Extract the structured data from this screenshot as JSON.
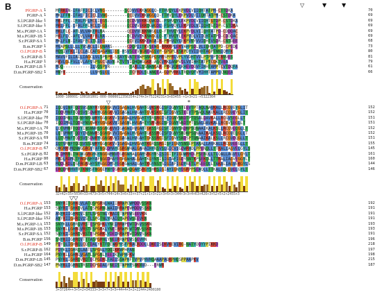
{
  "panel": {
    "label": "B"
  },
  "colors": {
    "hydrophobic": "#5b8fd6",
    "positive": "#d9463b",
    "negative": "#b04fc0",
    "polar": "#3bb55b",
    "cysteine": "#e79a8b",
    "glycine": "#e88a2b",
    "proline": "#d9d64a",
    "aromatic": "#3eb1b8",
    "conservation_high": "#f3dc3b",
    "conservation_mid": "#9a6b2a",
    "conservation_low": "#7a3d12"
  },
  "conservation_label": "Conservation",
  "blocks": [
    {
      "rows": [
        {
          "name": "PfGRP-A",
          "red": true,
          "start": "1",
          "end": "70",
          "seq": "MFRKEN-IFAFFICICLVNG--------SCDVVEKKWGGLQ-FTHVQYLEKPVDLVIIQHTATPM-CTTDKA"
        },
        {
          "name": "PGRP-A",
          "red": false,
          "start": "1",
          "end": "69",
          "seq": "MKLFFN-IFALFICICLIVNG--------QCDVVEKKWGGLQ-FTHVQYLEKPVDLVIIQHTATPM-CSTDKA"
        },
        {
          "name": "S.l.PGRP-like",
          "red": false,
          "start": "1",
          "end": "69",
          "seq": "MKLFFL-IFALFFLMCLIEGS--------QCDVVEKKQGWGDL-FSHVQYLEKPVDLVIIQHTGTDP-CSTDKA"
        },
        {
          "name": "S.f.PGRP-like",
          "red": false,
          "start": "1",
          "end": "69",
          "seq": "MKLFFL-IFALFFLMCLIEGS--------QCDVVEKKQGWGDL-FSHVQYLEKPVDLVIIQHTGTDP-CSTDKA"
        },
        {
          "name": "M.s.PGRP-1A",
          "red": false,
          "start": "1",
          "end": "69",
          "seq": "MKLFLC-AFLVLVAKFRLNA---------QCDVVEKKNWGGLQ-FTHVQYLEKPVDLVIIQHTATPD-CDDDAC"
        },
        {
          "name": "M.s.PGRP-1B",
          "red": false,
          "start": "1",
          "end": "69",
          "seq": "MKLFLC-AFLVLVAKFRLNA---------QCDVVEKKNWGGLQ-FTHVQYLEKPVDLVIIQHTATPD-CDDDAC"
        },
        {
          "name": "S.r.PGRP-SA",
          "red": false,
          "start": "1",
          "end": "68",
          "seq": "MKLFLN-IFALFFCITLIEG---------QCEVIKKKEWGAIR-PRHVQYLEKPVNYVVIQHTVSDR-CNTDEE"
        },
        {
          "name": "B.m.PGRP",
          "red": false,
          "start": "1",
          "end": "73",
          "seq": "MVAPSLLLLLTVSACLIEGNAAS------CDQPIITKVSEWG-RRKKPLEKVAHPSDLVLIQHTATPD-CPEDE"
        },
        {
          "name": "O.f.PGRP-B",
          "red": true,
          "start": "1",
          "end": "80",
          "seq": "MQSIVFKLILCLALCAFGAGANLIGS-HSVSEEVNGNEWGSVP-GPGPLKSKPDYVIIHHTAGPTNNIQMFK"
        },
        {
          "name": "S.r.PGRP-B",
          "red": false,
          "start": "1",
          "end": "81",
          "seq": "MAVVFILIAILIAGCLVLSPNPR-SSAYSVATEVWPSNGPGSMRSPPRLVPLYVDHTVVLPTPVPTCRNVES"
        },
        {
          "name": "H.a.PGRP",
          "red": false,
          "start": "1",
          "end": "79",
          "seq": "MKVLGLFVLLVLAFVSPSGCSAVN-KTVTVIQHQWGGKR-ASCVRKLANPVDLVVIHHTATPTCGKTVEA"
        },
        {
          "name": "D.m.PGRP-LB",
          "red": false,
          "start": "1",
          "end": "61",
          "seq": "MQQ-----------ILVQSPVR--------TARLLSSNWNGAR-PRKVQRLKHEVDQVFIHHTAMPTCVTDQFA"
        },
        {
          "name": "D.m.PGRP-SB2",
          "red": false,
          "start": "1",
          "end": "66",
          "seq": "MNYK----------LLVMSLGL--------TCFRDLSLWNQEA-GDPVRKLTRQVQFVMIHHTAMPLCNQEA"
        }
      ],
      "scores": "1000-100001-100101001-000-0000012356354+274+3+75224231+3+83455-+1+3+21-+5322364"
    },
    {
      "rows": [
        {
          "name": "O.f.PGRP-A",
          "red": true,
          "start": "71",
          "end": "152",
          "seq": "IQDVINFTQDSVSSNYRYGGNGKVVIGAGWLHVGAHTGVKSKGISFIGNYSTEEVTPTAQLNAVKALLRCGVEYGLIT"
        },
        {
          "name": "H.a.PGRP",
          "red": false,
          "start": "70",
          "end": "152",
          "seq": "IQDVMNFTQDSVSSDWRYGGNGKVVIGAGWLHVGAHTGVKSKGISFIGNYSTEEVTPSAQLNAVKALLRCGVEYGLIT"
        },
        {
          "name": "S.l.PGRP-like",
          "red": false,
          "start": "70",
          "end": "151",
          "seq": "IQDIMNLTQDNYNSGWRYGGNGKVVIGAGWLHVGAHTYSRSRGISFIGNYNNDTPTQSALDAVKALLRCGVSEGLLT"
        },
        {
          "name": "S.f.PGRP-like",
          "red": false,
          "start": "70",
          "end": "151",
          "seq": "IQDIMNLTQDNYNSGWRYGGNGKVVIGAGWLHVGAHTYSRSRGISFIGNYNNDTPTQSALDAVKALLRCGVSEGLLT"
        },
        {
          "name": "M.s.PGRP-1A",
          "red": false,
          "start": "70",
          "end": "152",
          "seq": "LQTVMNFTQDYINSNWRSSGNGKVVIGAGWLHVGAHTGKSSRGISFIGNYSNDNPSQNAAIKALKSLLRCGVEQGLLT"
        },
        {
          "name": "M.s.PGRP-1B",
          "red": false,
          "start": "70",
          "end": "152",
          "seq": "LQTVMNFTQDYINSNWRSSGNGKVVIGAGWLHVGAHTGKSSRGISFIGNYSNDNPSQNAAIKALKSLLRCGVEQGLLT"
        },
        {
          "name": "S.r.PGRP-SA",
          "red": false,
          "start": "69",
          "end": "151",
          "seq": "LQTVMNFTQDSVSSDWRYGGNGKVVIGAGWLHVGAHTGKSSRGISFIGNYSNDSPTQNAAIKALKSLLRCGVEQGLLT"
        },
        {
          "name": "B.m.PGRP",
          "red": false,
          "start": "74",
          "end": "155",
          "seq": "IQTVMNFTQDSVSSDWRYGGNGKVVIGAGWLHVGAHTKGRSSRGISFIGNYSNSEPTANALLAVKALLRCGVEEGLLT"
        },
        {
          "name": "O.f.PGRP-B",
          "red": true,
          "start": "67",
          "end": "145",
          "seq": "QMGMRVMQNWGGRGVYAFNGGDMAYEGRGWHALGAHAIHFNSVSLGICVIGDWRHDLPPENQLLTTKALIAGVELGYLS"
        },
        {
          "name": "S.r.PGRP-B",
          "red": false,
          "start": "82",
          "end": "161",
          "seq": "RCDMRNLTNGWGGRGHGYNGGNMNVEGRGWHALGAHSRGYNSISIGITFIGDWRHDLPSENQLLTLQALLAGVELGYLT"
        },
        {
          "name": "H.a.PGRP",
          "red": false,
          "start": "80",
          "end": "160",
          "seq": "MKDLRDMQTFRGRNHYAFNGGDMAYEGRGWHALGAHTKGYNSISIGIAFIGDYNNTKPSEKQLLTTKALIAGVEGGYLT"
        },
        {
          "name": "D.m.PGRP-LB",
          "red": false,
          "start": "63",
          "end": "144",
          "seq": "MQDLRDLQSFRGRNHYSFNGGDMSYEGRGWHALGAHTKGYNSTSIGIAFIGDFNETLPSEEQLLTAKALIAGVEKGYLS"
        },
        {
          "name": "D.m.PGRP-SB2",
          "red": false,
          "start": "67",
          "end": "146",
          "seq": "ERQDMRHVFRTKNHSFNGGEMNYEGRGWQAQGAHSRGYSHRSIGIAYIGNYDGRPPSEWQLLTTKALIQLGVELGYLT"
        }
      ],
      "scores": "32+42+35+5034+33+473+3+5+744+14+3+6+33++37+21+1+3+21+3+6+3+344+3+3+4+63+426+3+52+5+2+2455+3"
    },
    {
      "rows": [
        {
          "name": "O.f.PGRP-A",
          "red": true,
          "start": "153",
          "end": "192",
          "seq": "SNYRITGHKQVLATQSPGRNLWAIIRRWPEWMDDVSSKN"
        },
        {
          "name": "H.a.PGRP",
          "red": false,
          "start": "153",
          "end": "191",
          "seq": "SNYRITGHKQVLATQSPGRNLWAIIRRWPEWMDDVSSKN"
        },
        {
          "name": "S.l.PGRP-like",
          "red": false,
          "start": "152",
          "end": "191",
          "seq": "ANYKIIGHRQVISTLSPGTNLYRAIQTWPEWSEEVKN"
        },
        {
          "name": "S.f.PGRP-like",
          "red": false,
          "start": "152",
          "end": "191",
          "seq": "ANYKIIGHRQVISTLSPGTNLYRAIQTWPEWSEEVKN"
        },
        {
          "name": "M.s.PGRP-1A",
          "red": false,
          "start": "153",
          "end": "193",
          "seq": "SNYKLLGHRQVRSTESPGRKLYNEIRRWPEWTDNVSSKN"
        },
        {
          "name": "M.s.PGRP-1B",
          "red": false,
          "start": "153",
          "end": "193",
          "seq": "SNYKLLGHRQVRSTESPGRKLYNEIRRWPEWTDNVSSKN"
        },
        {
          "name": "S.r.PGRP-SA",
          "red": false,
          "start": "152",
          "end": "191",
          "seq": "SNYKIIGHRQVRSTESPGRKLYDEIRRWPEWTDNVSSKN"
        },
        {
          "name": "B.m.PGRP",
          "red": false,
          "start": "156",
          "end": "196",
          "seq": "SNYKIIGHRQVTTTASPGRNLYNEIRRWPEWSSEVHN"
        },
        {
          "name": "O.f.PGRP-B",
          "red": true,
          "start": "149",
          "end": "218",
          "seq": "PDYQLIGHRQLCQTDALYKTFQEWKPHSFPRACRDDLLDKEISEKVKEVIRG-NATYDDYYPIKKD"
        },
        {
          "name": "S.r.PGRP-B",
          "red": false,
          "start": "162",
          "end": "197",
          "seq": "PDYKLIGHRQLAATLSPGNLYQQIKKWPHFAN"
        },
        {
          "name": "H.a.PGRP",
          "red": false,
          "start": "164",
          "end": "198",
          "seq": "PNYKLLGHRQVGATLSPGNLYEEIKTWPHFKW"
        },
        {
          "name": "D.m.PGRP-LB",
          "red": false,
          "start": "145",
          "end": "215",
          "seq": "PNYKLIGHRQVRQTECPGDRLFAEISSWPHFTVPVPHVHQAAAPAQKPHQSPPAAPKV"
        },
        {
          "name": "D.m.PGRP-SB2",
          "red": false,
          "start": "147",
          "end": "187",
          "seq": "PNYKLIGHRQTRSTDCPGDALFNEISTWPHFSNKNVD---ERWR"
        }
      ],
      "scores": "3+37264++3+5+2+34333+3+3+7+3+3+44+4+3+2+2244+2400100"
    }
  ]
}
